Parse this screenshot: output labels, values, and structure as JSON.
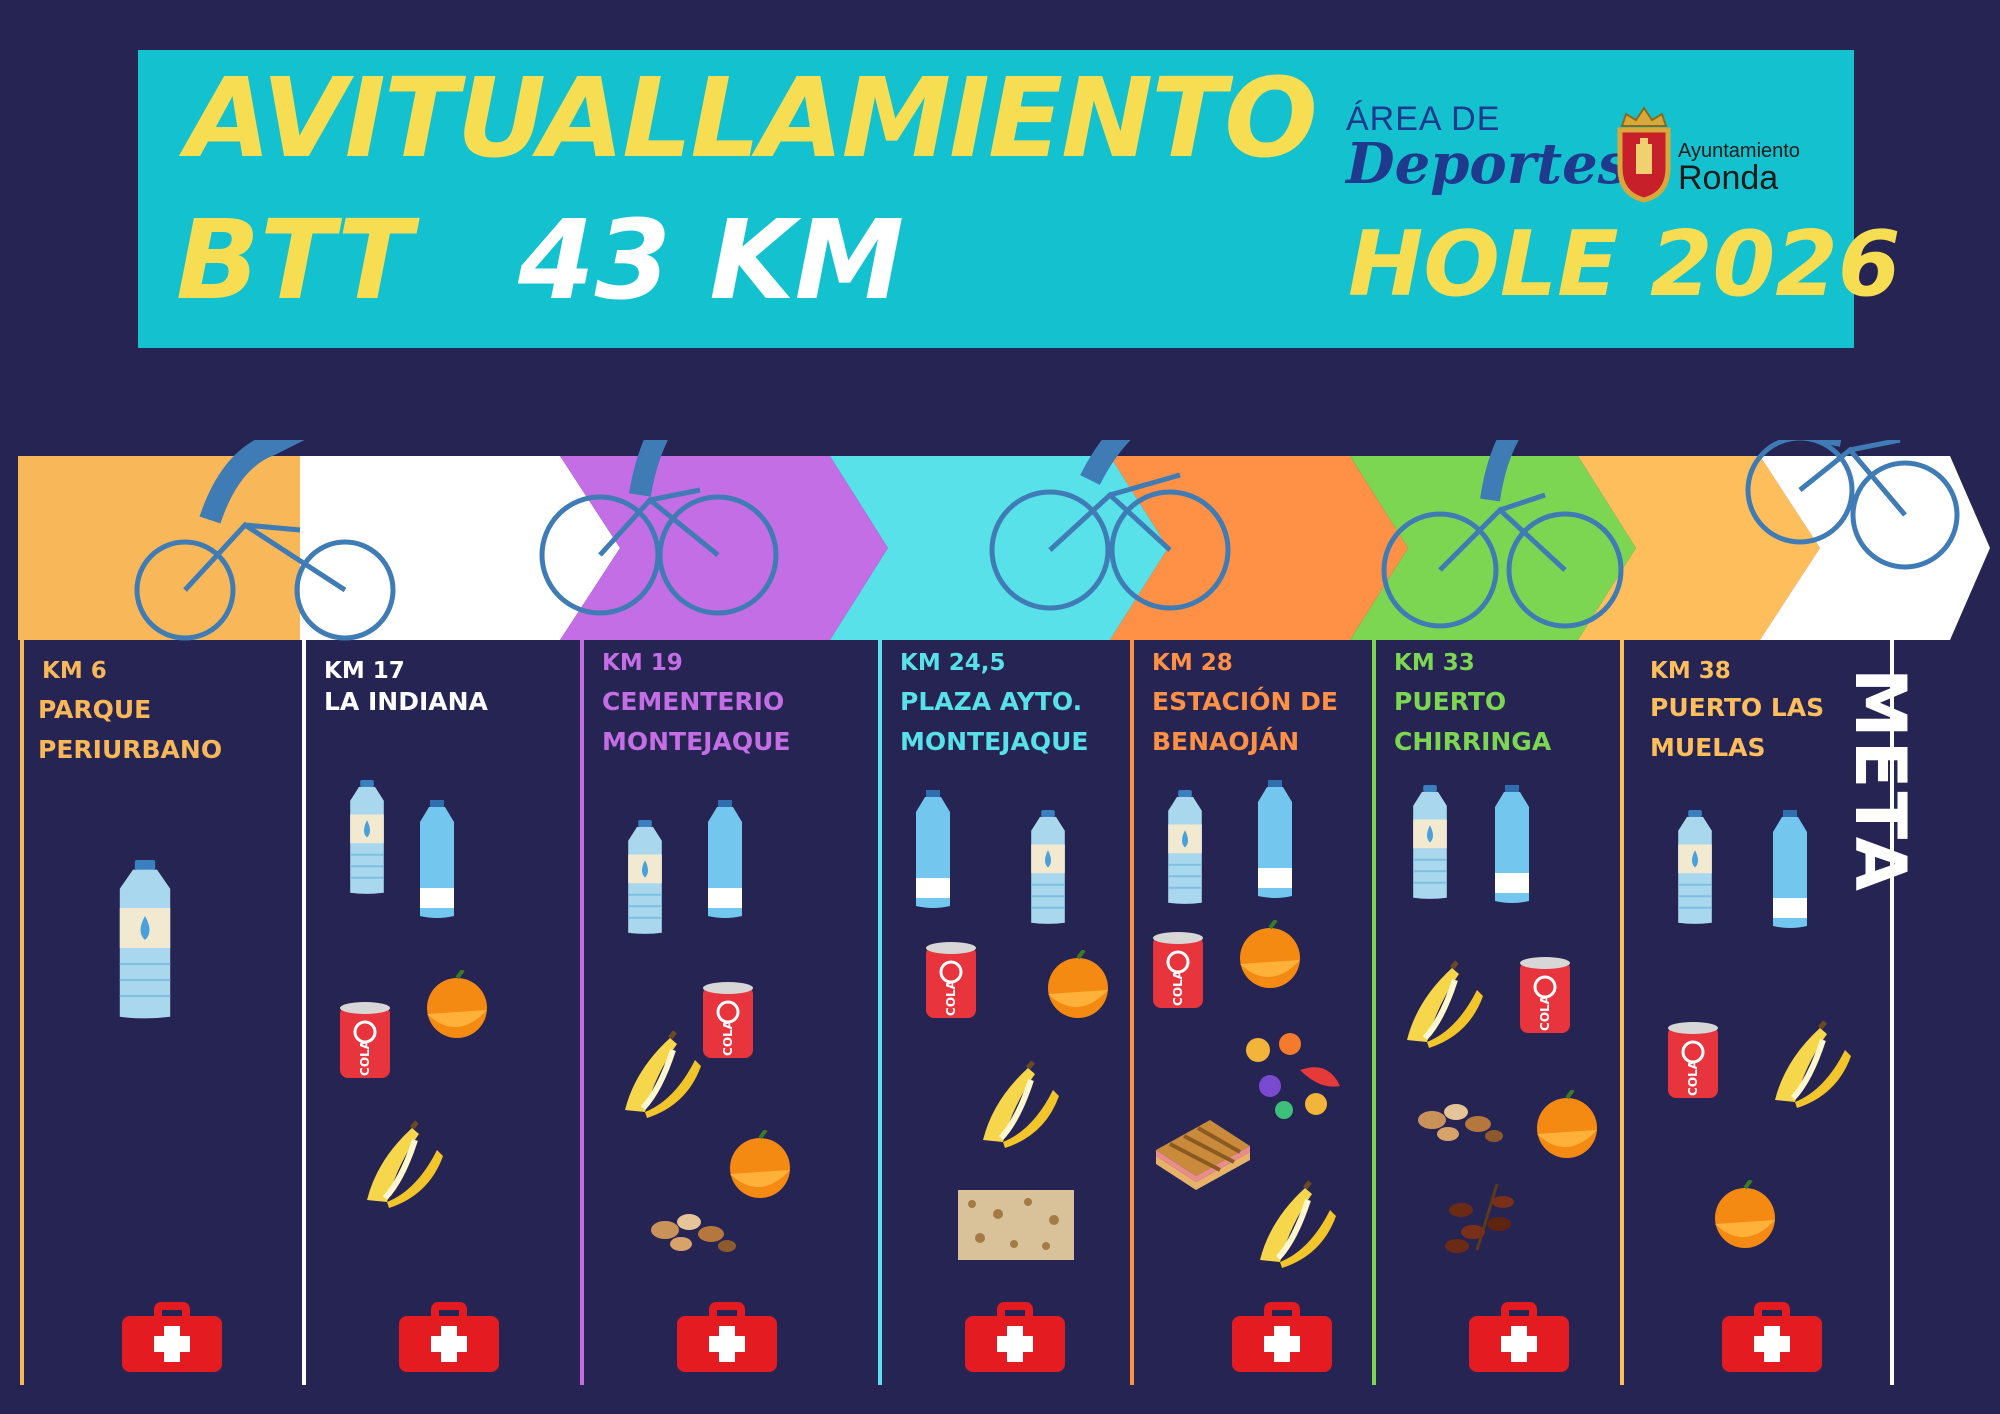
{
  "header": {
    "title": "AVITUALLAMIENTO",
    "subtitle_btt": "BTT",
    "distance": "43 KM",
    "event": "HOLE 2026",
    "logo_area_line1": "ÁREA DE",
    "logo_area_line2": "Deportes",
    "logo_town_line1": "Ayuntamiento",
    "logo_town_line2": "Ronda"
  },
  "colors": {
    "background": "#252453",
    "banner": "#14c2cf",
    "title_yellow": "#f6dd52",
    "station1": "#f8b758",
    "station2": "#ffffff",
    "station3": "#c46ee6",
    "station4": "#58e1e8",
    "station5": "#ff9147",
    "station6": "#7dd652",
    "station7": "#ffbe5c",
    "first_aid": "#e41c22",
    "cyclist": "#3f7bb4"
  },
  "stations": [
    {
      "km": "KM 6",
      "place1": "PARQUE",
      "place2": "PERIURBANO",
      "color": "#f8b758",
      "items": [
        "water-bottle-icon",
        "first-aid-kit-icon"
      ]
    },
    {
      "km": "KM  17",
      "place1": "LA INDIANA",
      "place2": "",
      "color": "#ffffff",
      "items": [
        "water-bottle-icon",
        "water-bottle-icon",
        "cola-can-icon",
        "orange-icon",
        "banana-icon",
        "first-aid-kit-icon"
      ]
    },
    {
      "km": "KM 19",
      "place1": "CEMENTERIO",
      "place2": "MONTEJAQUE",
      "color": "#c46ee6",
      "items": [
        "water-bottle-icon",
        "water-bottle-icon",
        "cola-can-icon",
        "banana-icon",
        "orange-icon",
        "nuts-icon",
        "first-aid-kit-icon"
      ]
    },
    {
      "km": "KM 24,5",
      "place1": "PLAZA AYTO.",
      "place2": "MONTEJAQUE",
      "color": "#58e1e8",
      "items": [
        "water-bottle-icon",
        "water-bottle-icon",
        "cola-can-icon",
        "orange-icon",
        "banana-icon",
        "nougat-bar-icon",
        "first-aid-kit-icon"
      ]
    },
    {
      "km": "KM 28",
      "place1": "ESTACIÓN DE",
      "place2": "BENAOJÁN",
      "color": "#ff9147",
      "items": [
        "water-bottle-icon",
        "water-bottle-icon",
        "cola-can-icon",
        "orange-icon",
        "gummy-candy-icon",
        "sandwich-icon",
        "banana-icon",
        "first-aid-kit-icon"
      ]
    },
    {
      "km": "KM 33",
      "place1": "PUERTO",
      "place2": "CHIRRINGA",
      "color": "#7dd652",
      "items": [
        "water-bottle-icon",
        "water-bottle-icon",
        "banana-icon",
        "cola-can-icon",
        "nuts-icon",
        "orange-icon",
        "dates-icon",
        "first-aid-kit-icon"
      ]
    },
    {
      "km": "KM 38",
      "place1": "PUERTO LAS",
      "place2": "MUELAS",
      "color": "#ffbe5c",
      "items": [
        "water-bottle-icon",
        "water-bottle-icon",
        "cola-can-icon",
        "banana-icon",
        "orange-icon",
        "first-aid-kit-icon"
      ]
    }
  ],
  "finish": "META",
  "cola_label": "COLA"
}
